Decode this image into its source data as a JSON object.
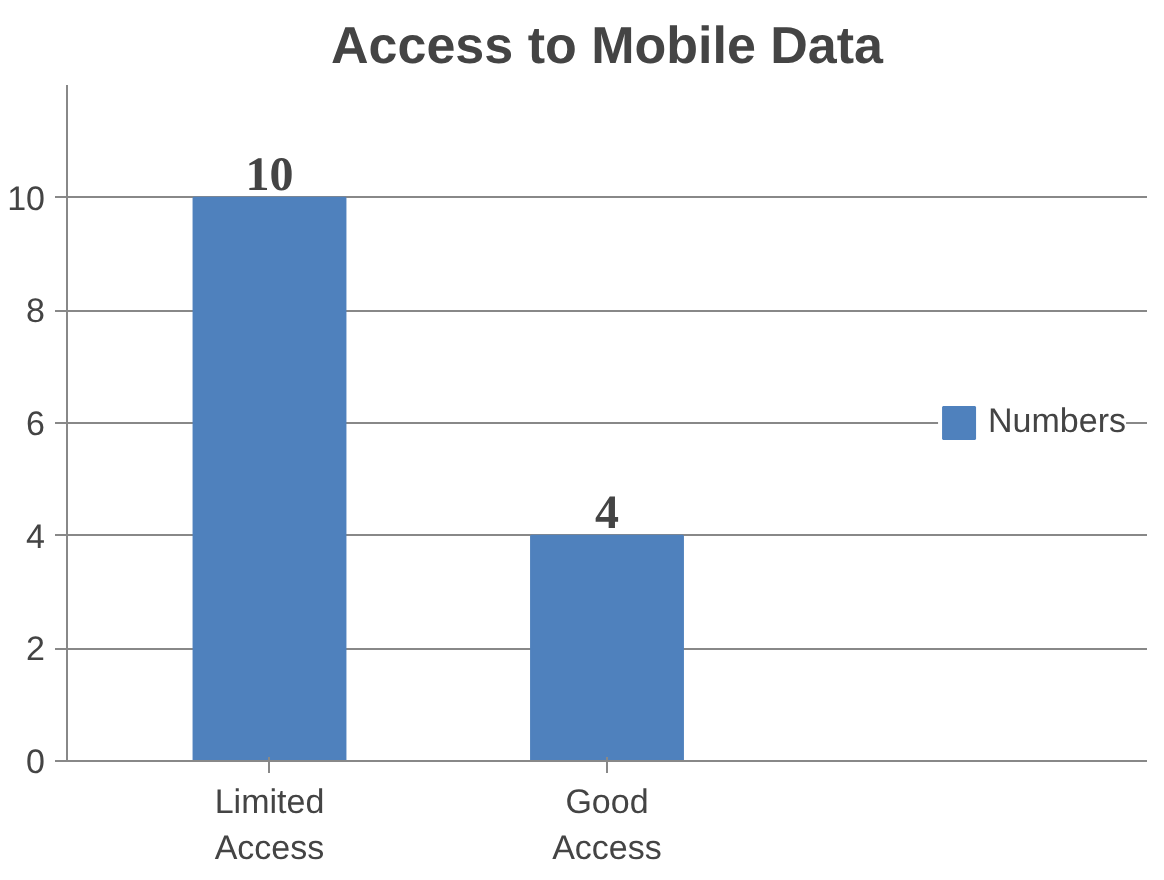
{
  "chart_data": {
    "type": "bar",
    "title": "Access to Mobile Data",
    "categories": [
      "Limited Access",
      "Good Access"
    ],
    "series": [
      {
        "name": "Numbers",
        "color": "#4f81bd",
        "values": [
          10,
          4
        ]
      }
    ],
    "ylim": [
      0,
      12
    ],
    "yticks": [
      0,
      2,
      4,
      6,
      8,
      10
    ],
    "grid": "y",
    "legend": "right",
    "data_labels": true
  }
}
